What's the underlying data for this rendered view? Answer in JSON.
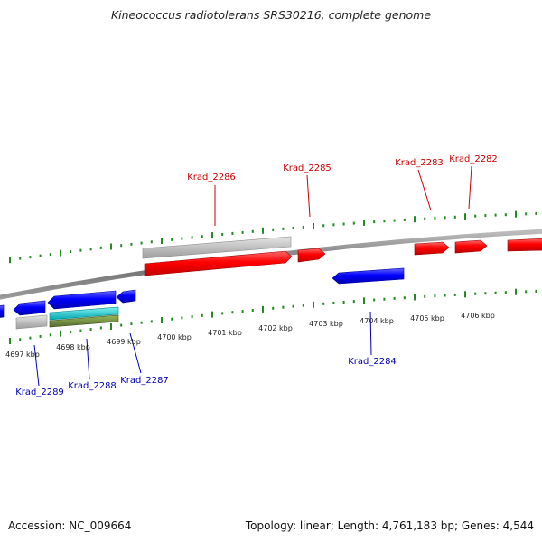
{
  "title": "Kineococcus radiotolerans SRS30216, complete genome",
  "footer": {
    "accession": "Accession: NC_009664",
    "summary": "Topology: linear; Length: 4,761,183 bp; Genes: 4,544"
  },
  "colors": {
    "forward_gene": "#ff0000",
    "reverse_gene": "#0000ff",
    "gray_feature": "#c0c0c0",
    "cyan_feature": "#00c8c8",
    "olive_feature": "#6b8e23",
    "tick": "#228b22",
    "forward_label": "#cc0000",
    "reverse_label": "#0000bb",
    "backbone": "#808080"
  },
  "scale_labels": [
    "4697 kbp",
    "4698 kbp",
    "4699 kbp",
    "4700 kbp",
    "4701 kbp",
    "4702 kbp",
    "4703 kbp",
    "4704 kbp",
    "4705 kbp",
    "4706 kbp"
  ],
  "gene_labels": {
    "forward": [
      "Krad_2286",
      "Krad_2285",
      "Krad_2283",
      "Krad_2282"
    ],
    "reverse": [
      "Krad_2289",
      "Krad_2288",
      "Krad_2287",
      "Krad_2284"
    ]
  }
}
